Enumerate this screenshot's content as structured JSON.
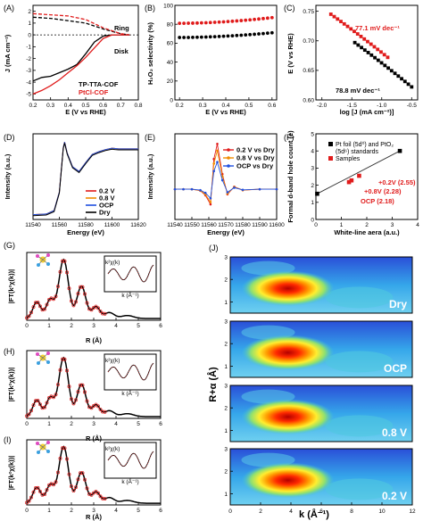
{
  "chart_data": [
    {
      "panel": "(A)",
      "type": "line",
      "xlabel": "E (V vs RHE)",
      "ylabel": "J (mA cm⁻²)",
      "xlim": [
        0.2,
        0.8
      ],
      "ylim": [
        -5.5,
        2.5
      ],
      "xticks": [
        "0.2",
        "0.3",
        "0.4",
        "0.5",
        "0.6",
        "0.7",
        "0.8"
      ],
      "yticks": [
        "-5",
        "-4",
        "-3",
        "-2",
        "-1",
        "0",
        "1",
        "2"
      ],
      "annotations": [
        "Ring",
        "Disk"
      ],
      "legend": [
        "TP-TTA-COF",
        "PtCl-COF"
      ],
      "series": [
        {
          "name": "TP-TTA-COF",
          "color": "#000000",
          "dash": false,
          "x": [
            0.2,
            0.25,
            0.3,
            0.35,
            0.4,
            0.45,
            0.5,
            0.55,
            0.6,
            0.65,
            0.7,
            0.75
          ],
          "y": [
            -3.9,
            -3.6,
            -3.5,
            -3.2,
            -2.9,
            -2.5,
            -1.6,
            -0.6,
            -0.1,
            0,
            0,
            0
          ]
        },
        {
          "name": "PtCl-COF",
          "color": "#e01b1b",
          "dash": false,
          "x": [
            0.2,
            0.25,
            0.3,
            0.35,
            0.4,
            0.45,
            0.5,
            0.55,
            0.6,
            0.65,
            0.7,
            0.75
          ],
          "y": [
            -5,
            -4.7,
            -4.3,
            -3.8,
            -3.2,
            -2.6,
            -1.9,
            -1.1,
            -0.3,
            0,
            0,
            0
          ]
        },
        {
          "name": "Ring TP-TTA",
          "color": "#000000",
          "dash": true,
          "x": [
            0.2,
            0.3,
            0.4,
            0.5,
            0.6,
            0.7,
            0.75
          ],
          "y": [
            1.5,
            1.4,
            1.2,
            1.0,
            0.5,
            0.1,
            0
          ]
        },
        {
          "name": "Ring PtCl",
          "color": "#e01b1b",
          "dash": true,
          "x": [
            0.2,
            0.3,
            0.4,
            0.5,
            0.6,
            0.7,
            0.75
          ],
          "y": [
            1.8,
            1.7,
            1.6,
            1.3,
            0.6,
            0.1,
            0
          ]
        }
      ]
    },
    {
      "panel": "(B)",
      "type": "scatter",
      "xlabel": "E (V vs RHE)",
      "ylabel": "H₂O₂ selectivity (%)",
      "xlim": [
        0.18,
        0.62
      ],
      "ylim": [
        0,
        100
      ],
      "xticks": [
        "0.2",
        "0.3",
        "0.4",
        "0.5",
        "0.6"
      ],
      "yticks": [
        "0",
        "20",
        "40",
        "60",
        "80",
        "100"
      ],
      "series": [
        {
          "name": "PtCl-COF",
          "color": "#e01b1b",
          "y_start": 81,
          "y_end": 87
        },
        {
          "name": "TP-TTA-COF",
          "color": "#000000",
          "y_start": 66,
          "y_end": 71
        }
      ]
    },
    {
      "panel": "(C)",
      "type": "scatter",
      "xlabel": "log [J (mA cm⁻²)]",
      "ylabel": "E (V vs RHE)",
      "xlim": [
        -2.1,
        -0.4
      ],
      "ylim": [
        0.6,
        0.76
      ],
      "xticks": [
        "-2.0",
        "-1.5",
        "-1.0",
        "-0.5"
      ],
      "yticks": [
        "0.60",
        "0.65",
        "0.70",
        "0.75"
      ],
      "annotations": [
        "77.1 mV dec⁻¹",
        "78.8 mV dec⁻¹"
      ],
      "series": [
        {
          "name": "PtCl-COF",
          "color": "#e01b1b",
          "x_start": -1.85,
          "x_end": -0.9,
          "y_start": 0.745,
          "y_end": 0.672
        },
        {
          "name": "TP-TTA-COF",
          "color": "#000000",
          "x_start": -1.45,
          "x_end": -0.5,
          "y_start": 0.697,
          "y_end": 0.622
        }
      ]
    },
    {
      "panel": "(D)",
      "type": "line",
      "xlabel": "Energy (eV)",
      "ylabel": "Intensity (a.u.)",
      "xlim": [
        11540,
        11620
      ],
      "xticks": [
        "11540",
        "11560",
        "11580",
        "11600",
        "11620"
      ],
      "legend": [
        "0.2 V",
        "0.8 V",
        "OCP",
        "Dry"
      ],
      "series": [
        {
          "name": "0.2 V",
          "color": "#e01b1b"
        },
        {
          "name": "0.8 V",
          "color": "#f08c00"
        },
        {
          "name": "OCP",
          "color": "#1f4fe0"
        },
        {
          "name": "Dry",
          "color": "#000000"
        }
      ],
      "x": [
        11540,
        11550,
        11556,
        11560,
        11563,
        11564,
        11566,
        11570,
        11575,
        11580,
        11585,
        11590,
        11595,
        11600,
        11605,
        11610,
        11620
      ],
      "y": [
        0.02,
        0.03,
        0.08,
        0.35,
        1.0,
        1.08,
        0.92,
        0.72,
        0.65,
        0.78,
        0.9,
        0.94,
        0.97,
        0.99,
        0.98,
        0.98,
        0.98
      ]
    },
    {
      "panel": "(E)",
      "type": "line",
      "xlabel": "Energy (eV)",
      "ylabel": "Intensity (a.u.)",
      "xlim": [
        11540,
        11600
      ],
      "xticks": [
        "11540",
        "11550",
        "11560",
        "11570",
        "11580",
        "11590",
        "11600"
      ],
      "legend": [
        "0.2 V vs Dry",
        "0.8 V vs Dry",
        "OCP vs Dry"
      ],
      "series": [
        {
          "name": "0.2 V vs Dry",
          "color": "#e01b1b"
        },
        {
          "name": "0.8 V vs Dry",
          "color": "#f08c00"
        },
        {
          "name": "OCP vs Dry",
          "color": "#1f4fe0"
        }
      ],
      "x": [
        11540,
        11545,
        11550,
        11555,
        11558,
        11561,
        11563,
        11565,
        11568,
        11571,
        11575,
        11580,
        11590,
        11600
      ],
      "y": [
        0,
        0,
        0,
        -0.03,
        -0.12,
        -0.3,
        0.6,
        0.9,
        0.3,
        -0.1,
        0.05,
        -0.02,
        0,
        0
      ]
    },
    {
      "panel": "(F)",
      "type": "scatter",
      "xlabel": "White-line aera (a.u.)",
      "ylabel": "Formal d-band hole count (e)",
      "xlim": [
        0,
        4
      ],
      "ylim": [
        0,
        5
      ],
      "xticks": [
        "0",
        "1",
        "2",
        "3",
        "4"
      ],
      "yticks": [
        "0",
        "1",
        "2",
        "3",
        "4",
        "5"
      ],
      "legend": [
        "Pt foil (5d⁰) and PtO₂",
        "(5d⁶) standards",
        "Samples"
      ],
      "annotations": [
        "+0.2V (2.55)",
        "+0.8V (2.28)",
        "OCP (2.18)"
      ],
      "points": [
        {
          "label": "Pt foil",
          "x": 0.05,
          "y": 1.5,
          "color": "#000000"
        },
        {
          "label": "PtO2",
          "x": 3.3,
          "y": 4.0,
          "color": "#000000"
        },
        {
          "label": "+0.2V",
          "x": 1.7,
          "y": 2.55,
          "color": "#e01b1b"
        },
        {
          "label": "+0.8V",
          "x": 1.4,
          "y": 2.28,
          "color": "#e01b1b"
        },
        {
          "label": "OCP",
          "x": 1.3,
          "y": 2.18,
          "color": "#e01b1b"
        }
      ]
    },
    {
      "panel": "(G)",
      "type": "line",
      "xlabel": "R (Å)",
      "ylabel": "|FT(k²χ(k))|",
      "xlim": [
        0,
        6
      ],
      "xticks": [
        "0",
        "1",
        "2",
        "3",
        "4",
        "5",
        "6"
      ],
      "inset_ylabel": "k²χ(k)",
      "inset_xlabel": "k (Å⁻¹)"
    },
    {
      "panel": "(H)",
      "type": "line",
      "xlabel": "R (Å)",
      "ylabel": "|FT(k²χ(k))|",
      "xlim": [
        0,
        6
      ],
      "xticks": [
        "0",
        "1",
        "2",
        "3",
        "4",
        "5",
        "6"
      ],
      "inset_ylabel": "k²χ(k)",
      "inset_xlabel": "k (Å⁻¹)"
    },
    {
      "panel": "(I)",
      "type": "line",
      "xlabel": "R (Å)",
      "ylabel": "|FT(k²χ(k))|",
      "xlim": [
        0,
        6
      ],
      "xticks": [
        "0",
        "1",
        "2",
        "3",
        "4",
        "5",
        "6"
      ],
      "inset_ylabel": "k²χ(k)",
      "inset_xlabel": "k (Å⁻¹)"
    },
    {
      "panel": "(J)",
      "type": "heatmap",
      "xlabel": "k (Å⁻¹)",
      "ylabel": "R+α (Å)",
      "xlim": [
        0,
        12
      ],
      "ylim": [
        0.5,
        3
      ],
      "xticks": [
        "0",
        "2",
        "4",
        "6",
        "8",
        "10",
        "12"
      ],
      "yticks": [
        "1",
        "2",
        "3"
      ],
      "maps": [
        {
          "label": "Dry",
          "peak_k": 3.8,
          "peak_R": 1.6
        },
        {
          "label": "OCP",
          "peak_k": 3.8,
          "peak_R": 1.6
        },
        {
          "label": "0.8 V",
          "peak_k": 3.8,
          "peak_R": 1.6
        },
        {
          "label": "0.2 V",
          "peak_k": 3.8,
          "peak_R": 1.6
        }
      ]
    }
  ]
}
